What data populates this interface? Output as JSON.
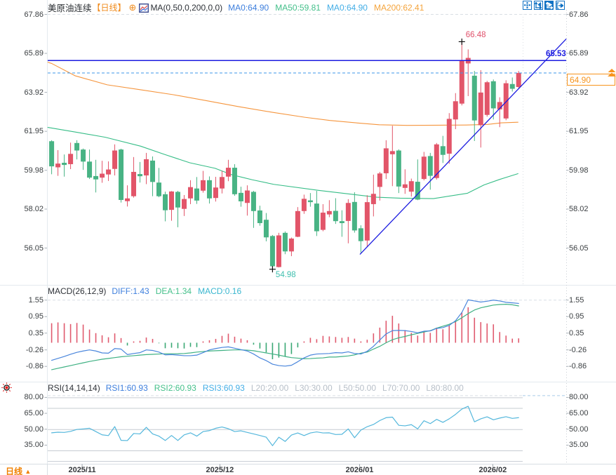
{
  "header": {
    "symbol": "美原油连续",
    "period_tag": "【日线】",
    "add_icon": "⊕",
    "ma_formula": "MA(0,50,0,200,0,0)",
    "ma_values": [
      {
        "label": "MA0:64.90",
        "color": "#3e7fdd"
      },
      {
        "label": "MA50:59.81",
        "color": "#45c08b"
      },
      {
        "label": "MA0:64.90",
        "color": "#44aee6"
      },
      {
        "label": "MA200:62.41",
        "color": "#f5a43c"
      }
    ]
  },
  "toolbar": {
    "buttons": [
      {
        "id": "pan",
        "active": false
      },
      {
        "id": "axis-left",
        "active": false
      },
      {
        "id": "axis-play",
        "active": true
      },
      {
        "id": "exit-right",
        "active": false
      }
    ]
  },
  "macd_legend": {
    "formula": "MACD(26,12,9)",
    "values": [
      {
        "label": "DIFF:1.43",
        "color": "#3e7fdd"
      },
      {
        "label": "DEA:1.34",
        "color": "#45c08b"
      },
      {
        "label": "MACD:0.16",
        "color": "#38b6cf"
      }
    ]
  },
  "rsi_legend": {
    "formula": "RSI(14,14,14)",
    "values": [
      {
        "label": "RSI1:60.93",
        "color": "#3e7fdd"
      },
      {
        "label": "RSI2:60.93",
        "color": "#45c08b"
      },
      {
        "label": "RSI3:60.93",
        "color": "#44aee6"
      },
      {
        "label": "L20:20.00",
        "color": "#b7bfc8"
      },
      {
        "label": "L30:30.00",
        "color": "#b7bfc8"
      },
      {
        "label": "L50:50.00",
        "color": "#b7bfc8"
      },
      {
        "label": "L70:70.00",
        "color": "#b7bfc8"
      },
      {
        "label": "L80:80.00",
        "color": "#b7bfc8"
      }
    ]
  },
  "bottom_bar": {
    "period_label": "日线",
    "period_arrow": "▲",
    "months": [
      {
        "label": "2025/11",
        "index": 4.83
      },
      {
        "label": "2025/12",
        "index": 26.66
      },
      {
        "label": "2026/01",
        "index": 48.8
      },
      {
        "label": "2026/02",
        "index": 69.9
      }
    ]
  },
  "colors": {
    "up": "#e25569",
    "down": "#48b384",
    "ma50_line": "#36bd87",
    "ma200_line": "#f5953d",
    "drawing_blue": "#1b1be0",
    "current_dash": "#3d97e8",
    "diff_line": "#4a86dc",
    "dea_line": "#3fb183",
    "hist_up": "#e05a6e",
    "hist_down": "#3aa874",
    "rsi_line": "#54b7dc",
    "axis_text": "#3c4043",
    "grid": "#d9dfe5",
    "level_line": "#c6ccd2",
    "accent_orange": "#f7941d",
    "high_label": "#e0506a",
    "low_label": "#3fbfae",
    "icon_blue": "#1272c4"
  },
  "chart_data": {
    "type": "candlestick",
    "symbol": "美原油连续",
    "interval": "日线",
    "price_panel": {
      "y_ticks": [
        "67.86",
        "65.89",
        "63.92",
        "61.95",
        "59.98",
        "58.02",
        "56.05"
      ],
      "y_tick_values": [
        67.86,
        65.89,
        63.92,
        61.95,
        59.98,
        58.02,
        56.05
      ],
      "candles_ohlc": [
        [
          61.45,
          61.5,
          59.78,
          60.18
        ],
        [
          60.13,
          61.0,
          59.7,
          60.32
        ],
        [
          60.36,
          60.78,
          59.66,
          60.25
        ],
        [
          60.29,
          61.38,
          60.04,
          60.81
        ],
        [
          61.36,
          61.5,
          60.53,
          60.98
        ],
        [
          61.03,
          61.08,
          60.0,
          60.42
        ],
        [
          60.42,
          61.03,
          59.54,
          59.61
        ],
        [
          59.69,
          60.51,
          58.86,
          59.52
        ],
        [
          59.61,
          60.46,
          59.35,
          59.81
        ],
        [
          59.77,
          60.43,
          59.44,
          60.02
        ],
        [
          60.05,
          61.29,
          59.72,
          60.98
        ],
        [
          61.03,
          61.07,
          58.35,
          58.48
        ],
        [
          58.42,
          59.22,
          58.15,
          58.56
        ],
        [
          58.67,
          60.65,
          58.6,
          59.9
        ],
        [
          59.79,
          60.4,
          59.36,
          59.68
        ],
        [
          59.72,
          60.86,
          59.28,
          60.54
        ],
        [
          60.47,
          60.68,
          58.67,
          59.39
        ],
        [
          59.36,
          60.1,
          58.62,
          58.67
        ],
        [
          58.77,
          58.9,
          57.4,
          57.96
        ],
        [
          57.98,
          58.93,
          57.43,
          58.91
        ],
        [
          58.89,
          58.94,
          57.1,
          58.1
        ],
        [
          58.03,
          58.73,
          57.67,
          58.53
        ],
        [
          58.56,
          59.48,
          58.27,
          59.13
        ],
        [
          59.06,
          59.64,
          58.28,
          58.45
        ],
        [
          58.95,
          59.95,
          58.85,
          59.48
        ],
        [
          59.48,
          59.67,
          58.3,
          58.56
        ],
        [
          58.58,
          59.65,
          58.4,
          59.11
        ],
        [
          59.06,
          59.95,
          58.81,
          59.64
        ],
        [
          59.66,
          60.51,
          59.43,
          60.11
        ],
        [
          60.11,
          60.29,
          58.69,
          58.77
        ],
        [
          58.84,
          59.15,
          58.14,
          58.41
        ],
        [
          58.33,
          59.22,
          57.69,
          58.96
        ],
        [
          58.89,
          58.94,
          57.07,
          57.92
        ],
        [
          57.95,
          58.19,
          57.18,
          57.31
        ],
        [
          57.48,
          57.82,
          56.39,
          56.59
        ],
        [
          56.66,
          56.71,
          54.98,
          55.13
        ],
        [
          55.09,
          56.82,
          55.07,
          56.69
        ],
        [
          56.82,
          56.89,
          55.74,
          55.88
        ],
        [
          55.88,
          56.58,
          55.64,
          56.53
        ],
        [
          56.62,
          58.12,
          56.6,
          57.92
        ],
        [
          57.92,
          58.75,
          57.78,
          58.54
        ],
        [
          58.46,
          58.83,
          58.14,
          58.37
        ],
        [
          58.3,
          58.94,
          56.66,
          56.9
        ],
        [
          56.97,
          58.27,
          56.9,
          57.84
        ],
        [
          57.75,
          58.47,
          57.61,
          57.92
        ],
        [
          57.93,
          58.57,
          57.27,
          57.41
        ],
        [
          57.41,
          57.96,
          56.62,
          57.31
        ],
        [
          57.42,
          58.52,
          56.29,
          58.33
        ],
        [
          58.38,
          58.87,
          56.83,
          56.94
        ],
        [
          57.05,
          57.2,
          55.82,
          56.4
        ],
        [
          56.43,
          58.72,
          56.1,
          58.37
        ],
        [
          58.27,
          59.76,
          57.65,
          58.79
        ],
        [
          59.14,
          59.9,
          58.45,
          59.82
        ],
        [
          59.83,
          61.5,
          59.54,
          61.09
        ],
        [
          60.79,
          62.23,
          59.18,
          60.95
        ],
        [
          60.98,
          61.04,
          58.83,
          59.16
        ],
        [
          59.09,
          60.03,
          58.79,
          59.27
        ],
        [
          58.9,
          59.56,
          58.65,
          59.43
        ],
        [
          59.4,
          60.53,
          58.47,
          58.5
        ],
        [
          59.54,
          60.91,
          59.47,
          60.67
        ],
        [
          60.7,
          60.86,
          59.0,
          59.7
        ],
        [
          59.59,
          61.36,
          59.51,
          61.29
        ],
        [
          61.2,
          61.72,
          60.35,
          60.76
        ],
        [
          60.82,
          62.87,
          60.31,
          62.58
        ],
        [
          62.55,
          63.88,
          62.06,
          63.47
        ],
        [
          63.35,
          66.48,
          63.26,
          65.52
        ],
        [
          65.38,
          66.09,
          63.73,
          65.66
        ],
        [
          64.76,
          65.0,
          61.46,
          62.5
        ],
        [
          62.26,
          65.04,
          61.13,
          63.91
        ],
        [
          62.78,
          64.5,
          62.69,
          64.43
        ],
        [
          64.48,
          64.57,
          62.55,
          63.11
        ],
        [
          63.06,
          63.67,
          62.16,
          63.43
        ],
        [
          62.6,
          64.53,
          62.51,
          64.38
        ],
        [
          64.34,
          64.67,
          63.96,
          64.1
        ],
        [
          64.19,
          65.0,
          64.14,
          64.9
        ]
      ],
      "ma50_points": [
        [
          -0.6,
          62.15
        ],
        [
          4,
          61.9
        ],
        [
          8.5,
          61.65
        ],
        [
          14.1,
          61.2
        ],
        [
          17.9,
          60.78
        ],
        [
          21.9,
          60.36
        ],
        [
          25.9,
          60.08
        ],
        [
          28.5,
          59.76
        ],
        [
          31.8,
          59.5
        ],
        [
          35.2,
          59.27
        ],
        [
          42.4,
          58.96
        ],
        [
          47,
          58.79
        ],
        [
          51.5,
          58.62
        ],
        [
          55.2,
          58.57
        ],
        [
          60.5,
          58.55
        ],
        [
          65.9,
          58.82
        ],
        [
          68.5,
          59.24
        ],
        [
          71,
          59.52
        ],
        [
          73.9,
          59.81
        ]
      ],
      "ma200_points": [
        [
          -0.6,
          65.44
        ],
        [
          0,
          65.38
        ],
        [
          3.7,
          64.76
        ],
        [
          8.8,
          64.3
        ],
        [
          14.1,
          64.05
        ],
        [
          19.3,
          63.8
        ],
        [
          24.5,
          63.5
        ],
        [
          29.6,
          63.2
        ],
        [
          34.8,
          62.92
        ],
        [
          40.1,
          62.66
        ],
        [
          44.1,
          62.5
        ],
        [
          48.5,
          62.37
        ],
        [
          51.9,
          62.28
        ],
        [
          56.3,
          62.25
        ],
        [
          61.6,
          62.26
        ],
        [
          65.7,
          62.27
        ],
        [
          69.1,
          62.3
        ],
        [
          71.3,
          62.38
        ],
        [
          73.9,
          62.41
        ]
      ],
      "high_marker": {
        "index": 65,
        "price": 66.48,
        "label": "66.48"
      },
      "low_marker": {
        "index": 35,
        "price": 54.98,
        "label": "54.98"
      },
      "horizontal_line": {
        "price": 65.53,
        "label": "65.53"
      },
      "current_price": {
        "price": 64.9,
        "label": "64.90"
      },
      "trend_line": {
        "index1": 48.85,
        "price1": 55.73,
        "index2": 81.55,
        "price2": 66.62
      }
    },
    "macd_panel": {
      "y_ticks": [
        "1.55",
        "0.95",
        "0.35",
        "-0.26",
        "-0.86"
      ],
      "y_tick_values": [
        1.55,
        0.95,
        0.35,
        -0.26,
        -0.86
      ],
      "diff": [
        -0.64,
        -0.57,
        -0.5,
        -0.42,
        -0.35,
        -0.3,
        -0.26,
        -0.3,
        -0.37,
        -0.38,
        -0.21,
        -0.23,
        -0.43,
        -0.39,
        -0.36,
        -0.26,
        -0.28,
        -0.34,
        -0.44,
        -0.43,
        -0.45,
        -0.47,
        -0.47,
        -0.45,
        -0.36,
        -0.26,
        -0.21,
        -0.17,
        -0.15,
        -0.2,
        -0.25,
        -0.3,
        -0.41,
        -0.55,
        -0.65,
        -0.78,
        -0.83,
        -0.85,
        -0.82,
        -0.69,
        -0.55,
        -0.45,
        -0.41,
        -0.4,
        -0.39,
        -0.36,
        -0.37,
        -0.33,
        -0.39,
        -0.41,
        -0.31,
        -0.13,
        0.1,
        0.32,
        0.44,
        0.45,
        0.44,
        0.41,
        0.36,
        0.42,
        0.43,
        0.52,
        0.55,
        0.63,
        0.8,
        1.1,
        1.56,
        1.52,
        1.48,
        1.51,
        1.55,
        1.52,
        1.47,
        1.45,
        1.43
      ],
      "dea": [
        -0.98,
        -0.93,
        -0.88,
        -0.83,
        -0.78,
        -0.73,
        -0.68,
        -0.64,
        -0.6,
        -0.57,
        -0.54,
        -0.51,
        -0.49,
        -0.47,
        -0.45,
        -0.43,
        -0.42,
        -0.41,
        -0.4,
        -0.4,
        -0.4,
        -0.39,
        -0.37,
        -0.34,
        -0.32,
        -0.3,
        -0.29,
        -0.28,
        -0.27,
        -0.26,
        -0.26,
        -0.27,
        -0.29,
        -0.33,
        -0.37,
        -0.41,
        -0.45,
        -0.5,
        -0.54,
        -0.56,
        -0.58,
        -0.575,
        -0.56,
        -0.55,
        -0.52,
        -0.52,
        -0.5,
        -0.48,
        -0.44,
        -0.38,
        -0.34,
        -0.23,
        -0.13,
        0.0,
        0.11,
        0.18,
        0.23,
        0.29,
        0.34,
        0.39,
        0.44,
        0.53,
        0.6,
        0.67,
        0.77,
        0.91,
        1.06,
        1.19,
        1.27,
        1.32,
        1.37,
        1.39,
        1.4,
        1.38,
        1.34
      ],
      "hist": [
        0.71,
        0.74,
        0.71,
        0.68,
        0.72,
        0.66,
        0.48,
        0.35,
        0.27,
        0.2,
        0.34,
        0.17,
        -0.1,
        0.05,
        0.07,
        0.19,
        0.14,
        -0.02,
        -0.2,
        -0.18,
        -0.2,
        -0.21,
        -0.15,
        -0.16,
        0.05,
        0.09,
        0.14,
        0.25,
        0.33,
        0.22,
        0.15,
        0.09,
        -0.07,
        -0.21,
        -0.35,
        -0.6,
        -0.54,
        -0.5,
        -0.41,
        -0.17,
        0.05,
        0.18,
        0.13,
        0.25,
        0.23,
        0.21,
        0.18,
        0.21,
        0.15,
        0.05,
        0.11,
        0.34,
        0.55,
        0.8,
        0.98,
        0.7,
        0.46,
        0.36,
        0.26,
        0.42,
        0.36,
        0.55,
        0.49,
        0.63,
        0.77,
        1.11,
        1.29,
        0.91,
        0.75,
        0.7,
        0.67,
        0.39,
        0.26,
        0.15,
        0.16
      ]
    },
    "rsi_panel": {
      "y_ticks": [
        "80.00",
        "65.00",
        "50.00",
        "35.00"
      ],
      "y_tick_values": [
        80,
        65,
        50,
        35
      ],
      "level_lines": [
        80,
        70,
        50,
        30,
        20
      ],
      "rsi": [
        46.6,
        47.2,
        47.0,
        48.0,
        49.8,
        50.3,
        50.9,
        47.8,
        44.7,
        44.0,
        52.5,
        39.5,
        39.3,
        46.0,
        45.6,
        51.8,
        45.6,
        43.5,
        39.4,
        44.1,
        39.4,
        44.7,
        46.6,
        43.5,
        47.8,
        48.7,
        50.9,
        52.1,
        50.5,
        47.8,
        48.5,
        47.0,
        45.6,
        44.1,
        42.5,
        34.5,
        42.5,
        38.5,
        44.5,
        46.5,
        44.0,
        46.5,
        47.5,
        46.5,
        46.6,
        45.0,
        45.2,
        50.3,
        42.0,
        49.2,
        52.4,
        54.5,
        58.2,
        60.9,
        61.4,
        53.7,
        53.2,
        54.3,
        50.3,
        58.0,
        55.3,
        59.3,
        56.5,
        59.8,
        64.0,
        69.0,
        71.6,
        57.0,
        59.8,
        61.7,
        58.9,
        60.5,
        61.8,
        60.2,
        60.93
      ]
    },
    "x_axis": {
      "labels": [
        "2025/11",
        "2025/12",
        "2026/01",
        "2026/02"
      ]
    }
  }
}
